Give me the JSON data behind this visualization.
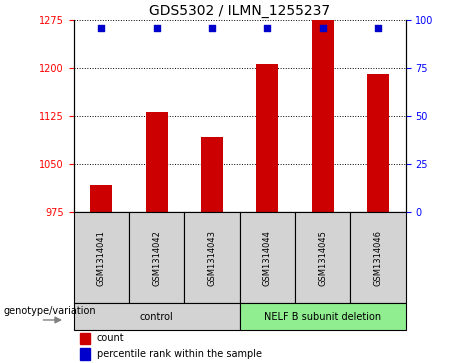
{
  "title": "GDS5302 / ILMN_1255237",
  "samples": [
    "GSM1314041",
    "GSM1314042",
    "GSM1314043",
    "GSM1314044",
    "GSM1314045",
    "GSM1314046"
  ],
  "count_values": [
    1017,
    1132,
    1093,
    1207,
    1275,
    1190
  ],
  "percentile_values": [
    96,
    96,
    96,
    96,
    96,
    96
  ],
  "ylim_left": [
    975,
    1275
  ],
  "ylim_right": [
    0,
    100
  ],
  "yticks_left": [
    975,
    1050,
    1125,
    1200,
    1275
  ],
  "yticks_right": [
    0,
    25,
    50,
    75,
    100
  ],
  "bar_color": "#cc0000",
  "dot_color": "#0000cc",
  "dot_size": 18,
  "groups": [
    {
      "label": "control",
      "indices": [
        0,
        1,
        2
      ],
      "color": "#d3d3d3"
    },
    {
      "label": "NELF B subunit deletion",
      "indices": [
        3,
        4,
        5
      ],
      "color": "#90ee90"
    }
  ],
  "group_label_prefix": "genotype/variation",
  "legend_count_label": "count",
  "legend_percentile_label": "percentile rank within the sample",
  "bar_baseline": 975,
  "bar_width": 0.4,
  "sample_box_color": "#d3d3d3",
  "title_fontsize": 10,
  "tick_fontsize": 7,
  "sample_fontsize": 6,
  "group_fontsize": 7,
  "legend_fontsize": 7,
  "geno_fontsize": 7
}
